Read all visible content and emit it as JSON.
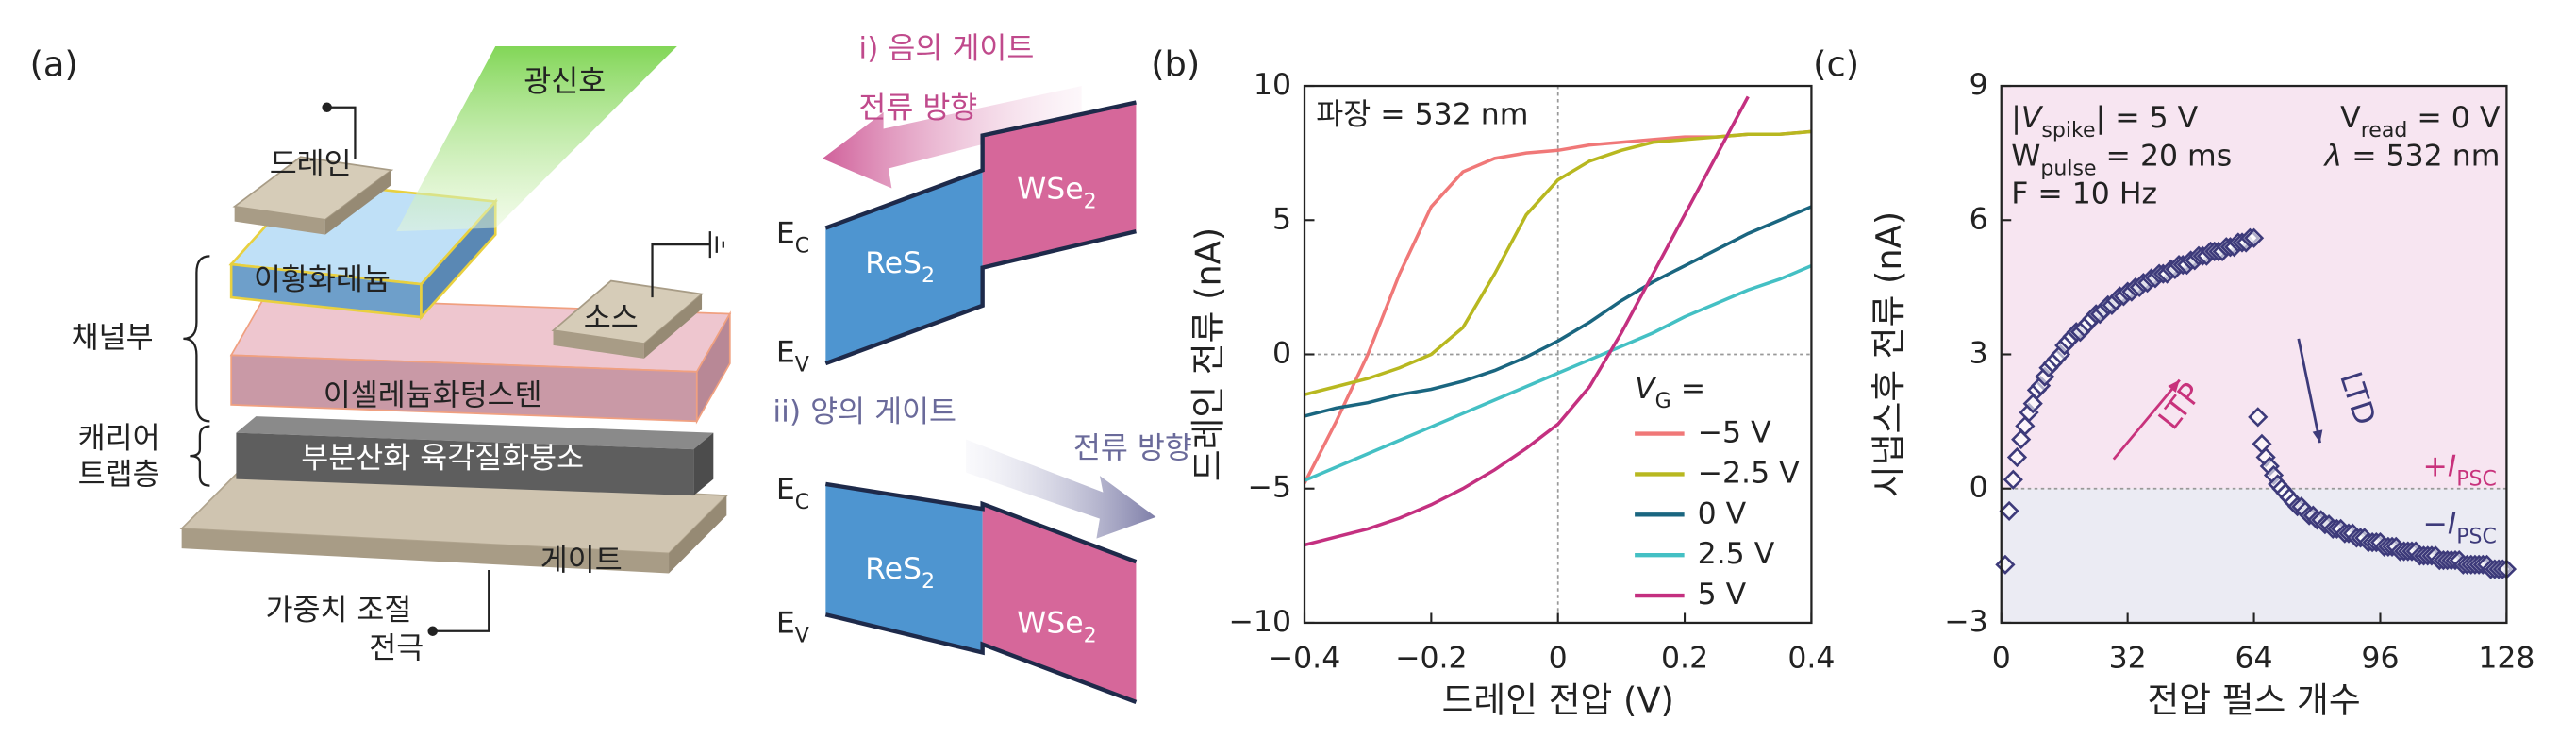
{
  "panel_a": {
    "label": "(a)",
    "light": "광신호",
    "drain": "드레인",
    "res2": "이황화레늄",
    "source": "소스",
    "channel": "채널부",
    "wse2": "이셀레늄화텅스텐",
    "trap": [
      "캐리어",
      "트랩층"
    ],
    "hbn": "부분산화 육각질화붕소",
    "gate": "게이트",
    "weight": [
      "가중치 조절",
      "전극"
    ]
  },
  "band_diagrams": [
    {
      "title": "i) 음의 게이트",
      "current": "전류 방향",
      "ec": {
        "parts": [
          {
            "text": "E"
          },
          {
            "text": "C",
            "sub": true
          }
        ]
      },
      "ev": {
        "parts": [
          {
            "text": "E"
          },
          {
            "text": "V",
            "sub": true
          }
        ]
      },
      "left": {
        "parts": [
          {
            "text": "ReS"
          },
          {
            "text": "2",
            "sub": true
          }
        ]
      },
      "right": {
        "parts": [
          {
            "text": "WSe"
          },
          {
            "text": "2",
            "sub": true
          }
        ]
      }
    },
    {
      "title": "ii) 양의 게이트",
      "current": "전류 방향",
      "ec": {
        "parts": [
          {
            "text": "E"
          },
          {
            "text": "C",
            "sub": true
          }
        ]
      },
      "ev": {
        "parts": [
          {
            "text": "E"
          },
          {
            "text": "V",
            "sub": true
          }
        ]
      },
      "left": {
        "parts": [
          {
            "text": "ReS"
          },
          {
            "text": "2",
            "sub": true
          }
        ]
      },
      "right": {
        "parts": [
          {
            "text": "WSe"
          },
          {
            "text": "2",
            "sub": true
          }
        ]
      }
    }
  ],
  "chart_data": [
    {
      "type": "line",
      "panel_label": "(b)",
      "xlabel": "드레인 전압 (V)",
      "ylabel": "드레인 전류 (nA)",
      "annotations": [
        {
          "parts": [
            {
              "text": "파장 = 532 nm"
            }
          ]
        }
      ],
      "legend_title": {
        "parts": [
          {
            "text": "V",
            "italic": true
          },
          {
            "text": "G",
            "sub": true
          },
          {
            "text": " ="
          }
        ]
      },
      "x": [
        -0.4,
        -0.35,
        -0.3,
        -0.25,
        -0.2,
        -0.15,
        -0.1,
        -0.05,
        0,
        0.05,
        0.1,
        0.15,
        0.2,
        0.25,
        0.3,
        0.35,
        0.4
      ],
      "series": [
        {
          "name": "−5 V",
          "color": "#f07878",
          "values": [
            -4.8,
            -2.5,
            0,
            3,
            5.5,
            6.8,
            7.3,
            7.5,
            7.6,
            7.8,
            7.9,
            8,
            8.1,
            8.1,
            8.2,
            8.2,
            8.3
          ]
        },
        {
          "name": "−2.5 V",
          "color": "#b8b820",
          "values": [
            -1.5,
            -1.2,
            -0.9,
            -0.5,
            0,
            1,
            3,
            5.2,
            6.5,
            7.2,
            7.6,
            7.9,
            8,
            8.1,
            8.2,
            8.2,
            8.3
          ]
        },
        {
          "name": "0 V",
          "color": "#1a6680",
          "values": [
            -2.3,
            -2,
            -1.8,
            -1.5,
            -1.3,
            -1,
            -0.6,
            -0.1,
            0.5,
            1.2,
            2,
            2.7,
            3.3,
            3.9,
            4.5,
            5,
            5.5
          ]
        },
        {
          "name": "2.5 V",
          "color": "#44c0c4",
          "values": [
            -4.7,
            -4.2,
            -3.7,
            -3.2,
            -2.7,
            -2.2,
            -1.7,
            -1.2,
            -0.7,
            -0.2,
            0.3,
            0.8,
            1.4,
            1.9,
            2.4,
            2.8,
            3.3
          ]
        },
        {
          "name": "5 V",
          "color": "#c43080",
          "values": [
            -7.1,
            -6.8,
            -6.5,
            -6.1,
            -5.6,
            -5,
            -4.3,
            -3.5,
            -2.6,
            -1.2,
            0.8,
            3,
            5.2,
            7.4,
            9.6,
            null,
            null
          ]
        }
      ],
      "xlim": [
        -0.4,
        0.4
      ],
      "xticks": [
        {
          "value": -0.4,
          "label": "−0.4"
        },
        {
          "value": -0.2,
          "label": "−0.2"
        },
        0,
        0.2,
        0.4
      ],
      "ylim": [
        -10,
        10
      ],
      "yticks": [
        {
          "value": -10,
          "label": "−10"
        },
        {
          "value": -5,
          "label": "−5"
        },
        0,
        5,
        10
      ],
      "zero_lines": "xy"
    },
    {
      "type": "scatter",
      "panel_label": "(c)",
      "xlabel": "전압 펄스 개수",
      "ylabel": "시냅스후 전류 (nA)",
      "annotations": [
        {
          "parts": [
            {
              "text": "|"
            },
            {
              "text": "V",
              "italic": true
            },
            {
              "text": "spike",
              "sub": true
            },
            {
              "text": "| = 5 V"
            }
          ]
        },
        {
          "parts": [
            {
              "text": "W"
            },
            {
              "text": "pulse",
              "sub": true
            },
            {
              "text": " = 20 ms"
            }
          ]
        },
        {
          "parts": [
            {
              "text": "F = 10 Hz"
            }
          ]
        },
        {
          "parts": [
            {
              "text": "V"
            },
            {
              "text": "read",
              "sub": true
            },
            {
              "text": " = 0 V"
            }
          ]
        },
        {
          "parts": [
            {
              "text": "λ",
              "italic": true
            },
            {
              "text": " = 532 nm"
            }
          ]
        },
        {
          "parts": [
            {
              "text": "LTP"
            }
          ]
        },
        {
          "parts": [
            {
              "text": "LTD"
            }
          ]
        },
        {
          "parts": [
            {
              "text": "+"
            },
            {
              "text": "I",
              "italic": true
            },
            {
              "text": "PSC",
              "sub": true
            }
          ]
        },
        {
          "parts": [
            {
              "text": "−"
            },
            {
              "text": "I",
              "italic": true
            },
            {
              "text": "PSC",
              "sub": true
            }
          ]
        }
      ],
      "x": [
        1,
        2,
        3,
        4,
        5,
        6,
        7,
        8,
        9,
        10,
        11,
        12,
        13,
        14,
        15,
        16,
        17,
        18,
        19,
        20,
        21,
        22,
        23,
        24,
        25,
        26,
        27,
        28,
        29,
        30,
        31,
        32,
        33,
        34,
        35,
        36,
        37,
        38,
        39,
        40,
        41,
        42,
        43,
        44,
        45,
        46,
        47,
        48,
        49,
        50,
        51,
        52,
        53,
        54,
        55,
        56,
        57,
        58,
        59,
        60,
        61,
        62,
        63,
        64,
        65,
        66,
        67,
        68,
        69,
        70,
        71,
        72,
        73,
        74,
        75,
        76,
        77,
        78,
        79,
        80,
        81,
        82,
        83,
        84,
        85,
        86,
        87,
        88,
        89,
        90,
        91,
        92,
        93,
        94,
        95,
        96,
        97,
        98,
        99,
        100,
        101,
        102,
        103,
        104,
        105,
        106,
        107,
        108,
        109,
        110,
        111,
        112,
        113,
        114,
        115,
        116,
        117,
        118,
        119,
        120,
        121,
        122,
        123,
        124,
        125,
        126,
        127,
        128
      ],
      "values": [
        -1.7,
        -0.5,
        0.2,
        0.7,
        1.1,
        1.4,
        1.7,
        1.9,
        2.2,
        2.3,
        2.5,
        2.7,
        2.8,
        2.9,
        3.0,
        3.2,
        3.3,
        3.4,
        3.5,
        3.5,
        3.6,
        3.7,
        3.8,
        3.9,
        3.9,
        4.0,
        4.1,
        4.1,
        4.2,
        4.3,
        4.3,
        4.4,
        4.4,
        4.5,
        4.5,
        4.6,
        4.6,
        4.7,
        4.7,
        4.8,
        4.8,
        4.8,
        4.9,
        4.9,
        5.0,
        5.0,
        5.0,
        5.1,
        5.1,
        5.2,
        5.2,
        5.2,
        5.3,
        5.3,
        5.3,
        5.3,
        5.4,
        5.4,
        5.4,
        5.5,
        5.5,
        5.5,
        5.6,
        5.6,
        1.6,
        1.0,
        0.7,
        0.5,
        0.3,
        0.1,
        0.0,
        -0.1,
        -0.2,
        -0.3,
        -0.4,
        -0.4,
        -0.5,
        -0.6,
        -0.6,
        -0.7,
        -0.7,
        -0.8,
        -0.8,
        -0.9,
        -0.9,
        -0.9,
        -1.0,
        -1.0,
        -1.0,
        -1.1,
        -1.1,
        -1.1,
        -1.2,
        -1.2,
        -1.2,
        -1.2,
        -1.3,
        -1.3,
        -1.3,
        -1.3,
        -1.4,
        -1.4,
        -1.4,
        -1.4,
        -1.4,
        -1.5,
        -1.5,
        -1.5,
        -1.5,
        -1.5,
        -1.6,
        -1.6,
        -1.6,
        -1.6,
        -1.6,
        -1.6,
        -1.7,
        -1.7,
        -1.7,
        -1.7,
        -1.7,
        -1.7,
        -1.7,
        -1.8,
        -1.8,
        -1.8,
        -1.8,
        -1.8
      ],
      "color": "#3d3a7a",
      "marker": "diamond",
      "xlim": [
        0,
        128
      ],
      "xticks": [
        0,
        32,
        64,
        96,
        128
      ],
      "ylim": [
        -3,
        9
      ],
      "yticks": [
        {
          "value": -3,
          "label": "−3"
        },
        0,
        3,
        6,
        9
      ],
      "background_colors": [
        "#f7e5f1",
        "#ebebf3"
      ],
      "zero_lines": "y"
    }
  ]
}
